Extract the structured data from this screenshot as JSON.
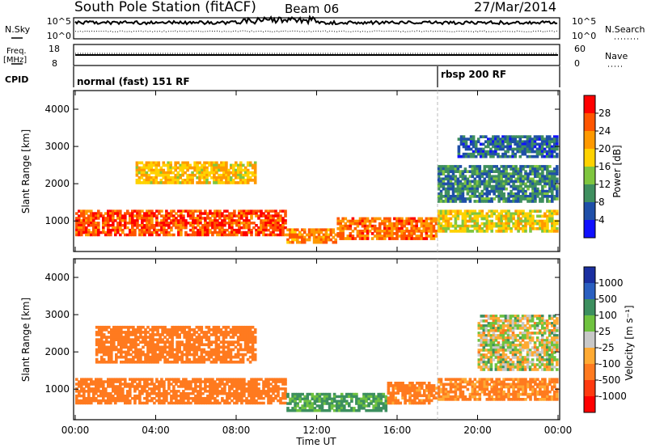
{
  "header": {
    "station": "South Pole Station (fitACF)",
    "beam": "Beam 06",
    "date": "27/Mar/2014"
  },
  "panels": {
    "noise": {
      "left_label": "N.Sky",
      "right_label": "N.Search",
      "left_ticks": [
        "10^5",
        "10^0"
      ],
      "right_ticks": [
        "10^5",
        "10^0"
      ]
    },
    "freq": {
      "left_label_1": "Freq.",
      "left_label_2": "[MHz]",
      "right_label": "Nave",
      "left_ticks": [
        "18",
        "8"
      ],
      "right_ticks": [
        "60",
        "0"
      ]
    },
    "cpid": {
      "label": "CPID",
      "segments": [
        "normal (fast) 151 RF",
        "rbsp 200 RF"
      ],
      "segment_starts": [
        "00:00",
        "18:00"
      ]
    }
  },
  "colorbars": {
    "power": {
      "label": "Power [dB]",
      "ticks": [
        "28",
        "24",
        "20",
        "16",
        "12",
        "8",
        "4"
      ],
      "colors": [
        "#ff0000",
        "#ff5500",
        "#ff9900",
        "#ffd200",
        "#7fc63f",
        "#3f8f5f",
        "#1f4fa8",
        "#1010ff"
      ]
    },
    "velocity": {
      "label": "Velocity [m s⁻¹]",
      "ticks": [
        "1000",
        "500",
        "100",
        "25",
        "-25",
        "-100",
        "-500",
        "-1000"
      ],
      "colors": [
        "#1a2fa0",
        "#2a5fc0",
        "#3c8f5f",
        "#6fc23f",
        "#c8c8c8",
        "#ffaa33",
        "#ff7a1f",
        "#ff3a10",
        "#ff0000"
      ]
    }
  },
  "axes": {
    "time_ticks": [
      "00:00",
      "04:00",
      "08:00",
      "12:00",
      "16:00",
      "20:00",
      "00:00"
    ],
    "xlabel": "Time UT",
    "ylabel": "Slant Range [km]",
    "range_ticks": [
      "1000",
      "2000",
      "3000",
      "4000"
    ]
  },
  "chart_data": [
    {
      "type": "heatmap",
      "title": "Power",
      "xlabel": "Time UT",
      "ylabel": "Slant Range [km]",
      "x_unit": "hours UT",
      "xlim": [
        0,
        24
      ],
      "ylim": [
        180,
        4500
      ],
      "colorbar_label": "Power [dB]",
      "colorbar_ticks": [
        28,
        24,
        20,
        16,
        12,
        8,
        4
      ],
      "bands": [
        {
          "t": [
            0,
            10.5
          ],
          "range": [
            600,
            1300
          ],
          "power": 28
        },
        {
          "t": [
            10.5,
            13
          ],
          "range": [
            400,
            800
          ],
          "power": 24
        },
        {
          "t": [
            13,
            18
          ],
          "range": [
            500,
            1100
          ],
          "power": 26
        },
        {
          "t": [
            18,
            24
          ],
          "range": [
            700,
            1300
          ],
          "power": 18
        },
        {
          "t": [
            3,
            9
          ],
          "range": [
            2000,
            2600
          ],
          "power": 20
        },
        {
          "t": [
            18,
            24
          ],
          "range": [
            1500,
            2500
          ],
          "power": 8
        },
        {
          "t": [
            19,
            24
          ],
          "range": [
            2700,
            3300
          ],
          "power": 6
        }
      ]
    },
    {
      "type": "heatmap",
      "title": "Velocity",
      "xlabel": "Time UT",
      "ylabel": "Slant Range [km]",
      "x_unit": "hours UT",
      "xlim": [
        0,
        24
      ],
      "ylim": [
        180,
        4500
      ],
      "colorbar_label": "Velocity [m s⁻¹]",
      "colorbar_ticks": [
        1000,
        500,
        100,
        25,
        -25,
        -100,
        -500,
        -1000
      ],
      "bands": [
        {
          "t": [
            0,
            10.5
          ],
          "range": [
            600,
            1300
          ],
          "velocity": -300
        },
        {
          "t": [
            10.5,
            15.5
          ],
          "range": [
            400,
            900
          ],
          "velocity": 150
        },
        {
          "t": [
            15.5,
            18
          ],
          "range": [
            600,
            1200
          ],
          "velocity": -200
        },
        {
          "t": [
            18,
            24
          ],
          "range": [
            700,
            1300
          ],
          "velocity": -150
        },
        {
          "t": [
            1,
            9
          ],
          "range": [
            1700,
            2700
          ],
          "velocity": -300
        },
        {
          "t": [
            20,
            24
          ],
          "range": [
            1500,
            3000
          ],
          "velocity": 0
        }
      ]
    }
  ]
}
